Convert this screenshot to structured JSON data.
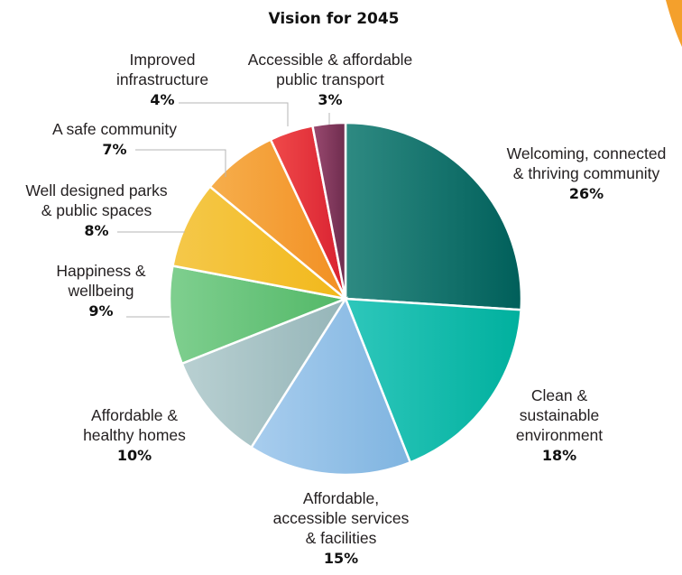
{
  "chart_data": {
    "type": "pie",
    "title": "Vision for 2045",
    "slices": [
      {
        "name": "Welcoming, connected & thriving community",
        "lines": [
          "Welcoming, connected",
          "& thriving community"
        ],
        "value": 26,
        "label": "26%",
        "color_start": "#2e8a82",
        "color_end": "#005f5a"
      },
      {
        "name": "Clean & sustainable environment",
        "lines": [
          "Clean &",
          "sustainable",
          "environment"
        ],
        "value": 18,
        "label": "18%",
        "color_start": "#2ec7bb",
        "color_end": "#00b09e"
      },
      {
        "name": "Affordable, accessible services & facilities",
        "lines": [
          "Affordable,",
          "accessible services",
          "& facilities"
        ],
        "value": 15,
        "label": "15%",
        "color_start": "#a8cdee",
        "color_end": "#7fb4e0"
      },
      {
        "name": "Affordable & healthy homes",
        "lines": [
          "Affordable &",
          "healthy homes"
        ],
        "value": 10,
        "label": "10%",
        "color_start": "#b9d0d2",
        "color_end": "#95b5b8"
      },
      {
        "name": "Happiness & wellbeing",
        "lines": [
          "Happiness &",
          "wellbeing"
        ],
        "value": 9,
        "label": "9%",
        "color_start": "#7fcf8f",
        "color_end": "#52b867"
      },
      {
        "name": "Well designed parks & public spaces",
        "lines": [
          "Well designed parks",
          "& public spaces"
        ],
        "value": 8,
        "label": "8%",
        "color_start": "#f5c84a",
        "color_end": "#f2b81a"
      },
      {
        "name": "A safe community",
        "lines": [
          "A safe community"
        ],
        "value": 7,
        "label": "7%",
        "color_start": "#f6ae4c",
        "color_end": "#f28f22"
      },
      {
        "name": "Improved infrastructure",
        "lines": [
          "Improved",
          "infrastructure"
        ],
        "value": 4,
        "label": "4%",
        "color_start": "#f04a4a",
        "color_end": "#d82030"
      },
      {
        "name": "Accessible & affordable public transport",
        "lines": [
          "Accessible & affordable",
          "public transport"
        ],
        "value": 3,
        "label": "3%",
        "color_start": "#9a4a70",
        "color_end": "#6e2c4e"
      }
    ]
  }
}
